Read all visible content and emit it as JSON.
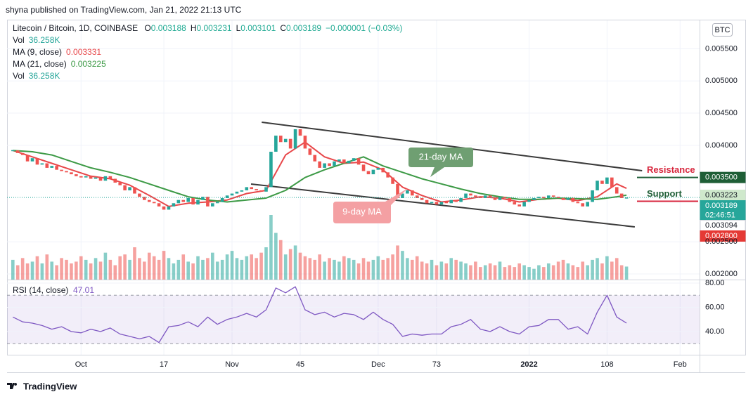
{
  "publisher": "shyna published on TradingView.com, Jan 21, 2022 21:13 UTC",
  "footer": {
    "brand": "TradingView"
  },
  "chart_data": {
    "type": "candlestick",
    "currency_button": "BTC",
    "legend": {
      "symbol": "Litecoin / Bitcoin, 1D, COINBASE",
      "ohlc": [
        {
          "label": "O",
          "value": 0.003188
        },
        {
          "label": "H",
          "value": 0.003231
        },
        {
          "label": "L",
          "value": 0.003101
        },
        {
          "label": "C",
          "value": 0.003189
        }
      ],
      "change": "−0.000001 (−0.03%)"
    },
    "legend_rows": [
      {
        "name": "Vol",
        "value": "36.258K",
        "color": "#26a69a"
      },
      {
        "name": "MA (9, close)",
        "value": 0.003331,
        "color": "#e8474a"
      },
      {
        "name": "MA (21, close)",
        "value": 0.003225,
        "color": "#3d9a46"
      },
      {
        "name": "Vol",
        "value": "36.258K",
        "color": "#26a69a"
      }
    ],
    "x": [
      -14,
      -13,
      -12,
      -11,
      -10,
      -9,
      -8,
      -7,
      -6,
      -5,
      -4,
      -3,
      -2,
      -1,
      0,
      1,
      2,
      3,
      4,
      5,
      6,
      7,
      8,
      9,
      10,
      11,
      12,
      13,
      14,
      15,
      16,
      17,
      18,
      19,
      20,
      21,
      22,
      23,
      24,
      25,
      26,
      27,
      28,
      29,
      30,
      31,
      32,
      33,
      34,
      35,
      36,
      37,
      38,
      39,
      40,
      41,
      42,
      43,
      44,
      45,
      46,
      47,
      48,
      49,
      50,
      51,
      52,
      53,
      54,
      55,
      56,
      57,
      58,
      59,
      60,
      61,
      62,
      63,
      64,
      65,
      66,
      67,
      68,
      69,
      70,
      71,
      72,
      73,
      74,
      75,
      76,
      77,
      78,
      79,
      80,
      81,
      82,
      83,
      84,
      85,
      86,
      87,
      88,
      89,
      90,
      91,
      92,
      93,
      94,
      95,
      96,
      97,
      98,
      99,
      100,
      101,
      102,
      103,
      104,
      105,
      106,
      107,
      108,
      109,
      110,
      111,
      112
    ],
    "close": [
      0.00392,
      0.00388,
      0.00385,
      0.00375,
      0.0038,
      0.0037,
      0.00372,
      0.00365,
      0.00368,
      0.00362,
      0.0036,
      0.00358,
      0.00355,
      0.00352,
      0.0035,
      0.00352,
      0.00348,
      0.0035,
      0.00345,
      0.00352,
      0.00348,
      0.00342,
      0.00338,
      0.0033,
      0.00335,
      0.00325,
      0.0032,
      0.00315,
      0.00312,
      0.0031,
      0.00305,
      0.003,
      0.00305,
      0.0031,
      0.00315,
      0.00312,
      0.00318,
      0.00308,
      0.00315,
      0.0032,
      0.00305,
      0.0031,
      0.00312,
      0.00318,
      0.00322,
      0.00325,
      0.00328,
      0.0033,
      0.00335,
      0.00332,
      0.0033,
      0.00328,
      0.00335,
      0.0039,
      0.00415,
      0.00405,
      0.0041,
      0.00395,
      0.00425,
      0.00415,
      0.00395,
      0.00385,
      0.00375,
      0.00365,
      0.00372,
      0.00368,
      0.00375,
      0.00378,
      0.00372,
      0.00376,
      0.0038,
      0.0037,
      0.0036,
      0.00355,
      0.00362,
      0.00365,
      0.00358,
      0.0035,
      0.0034,
      0.00318,
      0.00325,
      0.0033,
      0.00322,
      0.00318,
      0.00315,
      0.0031,
      0.00312,
      0.00308,
      0.00312,
      0.0031,
      0.00315,
      0.00312,
      0.00318,
      0.00325,
      0.00322,
      0.0032,
      0.00318,
      0.00322,
      0.00318,
      0.00315,
      0.0032,
      0.00318,
      0.00312,
      0.00308,
      0.00305,
      0.00312,
      0.00315,
      0.00318,
      0.0032,
      0.00318,
      0.00322,
      0.0032,
      0.00318,
      0.00315,
      0.00318,
      0.00312,
      0.0031,
      0.00305,
      0.00312,
      0.0033,
      0.00345,
      0.0034,
      0.0035,
      0.00335,
      0.00325,
      0.00318,
      0.003189
    ],
    "volume": [
      55,
      40,
      60,
      45,
      50,
      65,
      45,
      70,
      50,
      40,
      60,
      55,
      45,
      50,
      65,
      55,
      45,
      60,
      50,
      75,
      55,
      40,
      65,
      70,
      55,
      90,
      60,
      50,
      75,
      65,
      55,
      80,
      60,
      45,
      55,
      70,
      50,
      45,
      65,
      55,
      60,
      75,
      50,
      55,
      70,
      80,
      60,
      55,
      65,
      70,
      60,
      75,
      90,
      180,
      130,
      110,
      70,
      85,
      95,
      75,
      65,
      60,
      55,
      70,
      50,
      60,
      55,
      50,
      65,
      60,
      55,
      45,
      60,
      50,
      55,
      65,
      55,
      60,
      70,
      95,
      80,
      60,
      55,
      65,
      50,
      45,
      55,
      40,
      50,
      45,
      60,
      55,
      50,
      45,
      40,
      50,
      35,
      40,
      45,
      40,
      50,
      35,
      40,
      35,
      45,
      40,
      35,
      30,
      40,
      35,
      45,
      40,
      50,
      55,
      45,
      40,
      35,
      50,
      40,
      55,
      60,
      45,
      65,
      50,
      60,
      40,
      36.258
    ],
    "up_color": "#26a69a",
    "down_color": "#ef5350",
    "series": [
      {
        "color": "#e8474a",
        "x": [
          -14,
          -10,
          -6,
          -2,
          2,
          6,
          10,
          14,
          18,
          22,
          26,
          30,
          34,
          38,
          42,
          46,
          50,
          54,
          58,
          62,
          66,
          70,
          74,
          78,
          82,
          86,
          90,
          94,
          98,
          102,
          106,
          110,
          112
        ],
        "values": [
          0.00392,
          0.00382,
          0.00372,
          0.00362,
          0.00352,
          0.00348,
          0.00338,
          0.00322,
          0.00305,
          0.0031,
          0.00312,
          0.00315,
          0.00325,
          0.0033,
          0.00385,
          0.00405,
          0.00382,
          0.00372,
          0.00374,
          0.00362,
          0.00335,
          0.00322,
          0.00312,
          0.00315,
          0.0032,
          0.00318,
          0.00312,
          0.00316,
          0.00318,
          0.00314,
          0.0032,
          0.0034,
          0.003331
        ]
      },
      {
        "color": "#3d9a46",
        "x": [
          -14,
          -10,
          -6,
          -2,
          2,
          6,
          10,
          14,
          18,
          22,
          26,
          30,
          34,
          38,
          42,
          46,
          50,
          54,
          58,
          62,
          66,
          70,
          74,
          78,
          82,
          86,
          90,
          94,
          98,
          102,
          106,
          110,
          112
        ],
        "values": [
          0.00392,
          0.0039,
          0.00385,
          0.00375,
          0.00365,
          0.00358,
          0.0035,
          0.0034,
          0.0033,
          0.0032,
          0.00315,
          0.00312,
          0.00315,
          0.00318,
          0.0033,
          0.0035,
          0.00362,
          0.00372,
          0.00382,
          0.00368,
          0.00358,
          0.00348,
          0.0034,
          0.00332,
          0.00325,
          0.0032,
          0.00316,
          0.00316,
          0.00318,
          0.00317,
          0.00316,
          0.0032,
          0.003225
        ]
      }
    ],
    "xlim": [
      -15.2,
      127
    ],
    "xticks": [
      {
        "value": 0,
        "label": "Oct"
      },
      17,
      {
        "value": 31,
        "label": "Nov"
      },
      45,
      {
        "value": 61,
        "label": "Dec"
      },
      73,
      {
        "value": 92,
        "label": "2022"
      },
      108,
      {
        "value": 123,
        "label": "Feb"
      }
    ],
    "x_tick_labels_bold": [
      false,
      false,
      false,
      false,
      false,
      false,
      true,
      false,
      false
    ],
    "ylim": [
      0.001913,
      0.005931
    ],
    "yticks": [
      {
        "value": 0.0055,
        "label": "0.005500"
      },
      {
        "value": 0.005,
        "label": "0.005000"
      },
      {
        "value": 0.0045,
        "label": "0.004500"
      },
      {
        "value": 0.004,
        "label": "0.004000"
      },
      {
        "value": 0.0025,
        "label": "0.002500"
      },
      {
        "value": 0.002,
        "label": "0.002000"
      }
    ],
    "grid": true,
    "price_boxes": [
      {
        "value": 0.0035,
        "label": "0.003500",
        "color": "#1e5e36",
        "text_color": "#ffffff"
      },
      {
        "value": 0.003223,
        "label": "0.003223",
        "color": "#cfe9cc",
        "text_color": "#131722"
      },
      {
        "value": 0.003189,
        "label": "0.003189",
        "countdown": "02:46:51",
        "color": "#26a69a",
        "text_color": "#ffffff"
      },
      {
        "value": 0.003094,
        "label": "0.003094",
        "color": "#ffffff",
        "text_color": "#131722"
      },
      {
        "value": 0.0028,
        "label": "0.002800",
        "color": "#e53935",
        "text_color": "#ffffff"
      }
    ],
    "trendlines": [
      {
        "x": [
          37.1,
          115.2
        ],
        "y": [
          0.004359,
          0.003605
        ],
        "color": "#3a3a3a"
      },
      {
        "x": [
          34.9,
          113.7
        ],
        "y": [
          0.003398,
          0.002732
        ],
        "color": "#3a3a3a"
      }
    ],
    "levels": [
      {
        "value": 0.0035,
        "label": "Resistance",
        "text_color": "#d7263d",
        "line_color": "#1e5e36"
      },
      {
        "value": 0.00313,
        "label": "Support",
        "text_color": "#1e5e36",
        "line_color": "#d7263d"
      }
    ],
    "annotations": [
      {
        "text": "21-day MA"
      },
      {
        "text": "9-day MA"
      }
    ],
    "rsi": {
      "name": "RSI (14, close)",
      "current": 47.01,
      "color": "#7e57c2",
      "x": [
        -14,
        -12,
        -10,
        -8,
        -6,
        -4,
        -2,
        0,
        2,
        4,
        6,
        8,
        10,
        12,
        14,
        16,
        18,
        20,
        22,
        24,
        26,
        28,
        30,
        32,
        34,
        36,
        38,
        40,
        42,
        44,
        46,
        48,
        50,
        52,
        54,
        56,
        58,
        60,
        62,
        64,
        66,
        68,
        70,
        72,
        74,
        76,
        78,
        80,
        82,
        84,
        86,
        88,
        90,
        92,
        94,
        96,
        98,
        100,
        102,
        104,
        106,
        108,
        110,
        112
      ],
      "values": [
        52,
        48,
        47,
        45,
        42,
        44,
        40,
        39,
        42,
        40,
        43,
        38,
        36,
        34,
        36,
        31,
        44,
        45,
        48,
        44,
        52,
        46,
        50,
        52,
        55,
        52,
        58,
        76,
        72,
        77,
        58,
        54,
        56,
        52,
        55,
        54,
        50,
        56,
        50,
        46,
        36,
        38,
        37,
        38,
        38,
        44,
        46,
        50,
        42,
        40,
        44,
        40,
        38,
        44,
        45,
        50,
        50,
        42,
        44,
        38,
        56,
        70,
        52,
        47.01
      ],
      "ylim": [
        20.9,
        82.9
      ],
      "yticks": [
        {
          "value": 80,
          "label": "80.00"
        },
        {
          "value": 60,
          "label": "60.00"
        },
        {
          "value": 40,
          "label": "40.00"
        }
      ],
      "bands": [
        30,
        70
      ]
    }
  }
}
